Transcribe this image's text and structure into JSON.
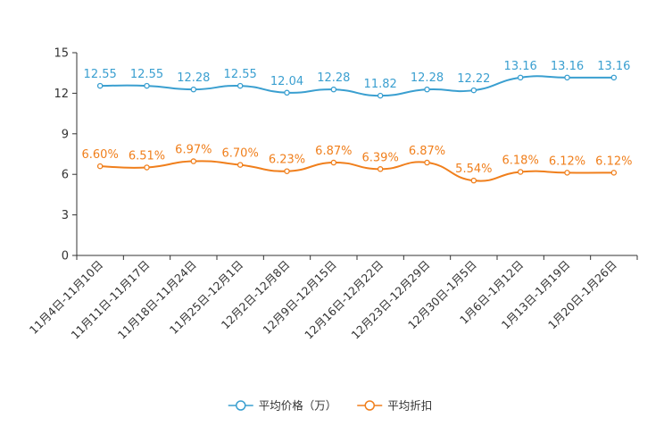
{
  "chart_data": {
    "type": "line",
    "categories": [
      "11月4日-11月10日",
      "11月11日-11月17日",
      "11月18日-11月24日",
      "11月25日-12月1日",
      "12月2日-12月8日",
      "12月9日-12月15日",
      "12月16日-12月22日",
      "12月23日-12月29日",
      "12月30日-1月5日",
      "1月6日-1月12日",
      "1月13日-1月19日",
      "1月20日-1月26日"
    ],
    "ylim": [
      0,
      15
    ],
    "yticks": [
      0,
      3,
      6,
      9,
      12,
      15
    ],
    "series": [
      {
        "name": "平均价格（万）",
        "color": "#3a9fd0",
        "values": [
          12.55,
          12.55,
          12.28,
          12.55,
          12.04,
          12.28,
          11.82,
          12.28,
          12.22,
          13.16,
          13.16,
          13.16
        ],
        "labels": [
          "12.55",
          "12.55",
          "12.28",
          "12.55",
          "12.04",
          "12.28",
          "11.82",
          "12.28",
          "12.22",
          "13.16",
          "13.16",
          "13.16"
        ]
      },
      {
        "name": "平均折扣",
        "color": "#f07f1c",
        "values": [
          6.6,
          6.51,
          6.97,
          6.7,
          6.23,
          6.87,
          6.39,
          6.87,
          5.54,
          6.18,
          6.12,
          6.12
        ],
        "labels": [
          "6.60%",
          "6.51%",
          "6.97%",
          "6.70%",
          "6.23%",
          "6.87%",
          "6.39%",
          "6.87%",
          "5.54%",
          "6.18%",
          "6.12%",
          "6.12%"
        ]
      }
    ],
    "legend_position": "bottom-center"
  }
}
